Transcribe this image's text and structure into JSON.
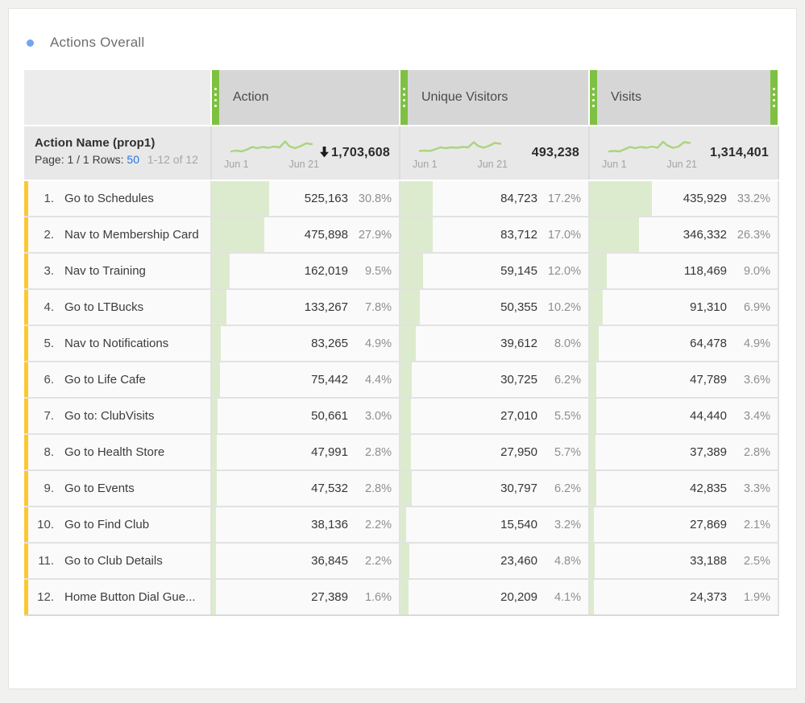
{
  "page": {
    "title": "Actions Overall"
  },
  "colors": {
    "handle_green": "#7ec142",
    "bar_green": "#dcebcd",
    "row_yellow": "#fcc832",
    "link_blue": "#2374e0",
    "spark_green": "#a9d57e",
    "header_gray": "#d6d6d6",
    "header_light": "#ececec",
    "summary_gray": "#e9e8e8",
    "row_bg": "#fafafa"
  },
  "table": {
    "dimension_header": {
      "name": "Action Name (prop1)",
      "page_label": "Page: 1 / 1",
      "rows_label": "Rows:",
      "rows_value": "50",
      "range_label": "1-12 of 12"
    },
    "columns": [
      {
        "id": "action",
        "label": "Action",
        "total": "1,703,608",
        "sorted_desc": true,
        "spark_start_label": "Jun 1",
        "spark_end_label": "Jun 21"
      },
      {
        "id": "unique_visitors",
        "label": "Unique Visitors",
        "total": "493,238",
        "sorted_desc": false,
        "spark_start_label": "Jun 1",
        "spark_end_label": "Jun 21"
      },
      {
        "id": "visits",
        "label": "Visits",
        "total": "1,314,401",
        "sorted_desc": false,
        "spark_start_label": "Jun 1",
        "spark_end_label": "Jun 21"
      }
    ],
    "rows": [
      {
        "num": "1.",
        "name": "Go to Schedules",
        "metrics": {
          "action": {
            "value": "525,163",
            "pct": "30.8%",
            "pct_num": 30.8
          },
          "unique_visitors": {
            "value": "84,723",
            "pct": "17.2%",
            "pct_num": 17.2
          },
          "visits": {
            "value": "435,929",
            "pct": "33.2%",
            "pct_num": 33.2
          }
        }
      },
      {
        "num": "2.",
        "name": "Nav to Membership Card",
        "metrics": {
          "action": {
            "value": "475,898",
            "pct": "27.9%",
            "pct_num": 27.9
          },
          "unique_visitors": {
            "value": "83,712",
            "pct": "17.0%",
            "pct_num": 17.0
          },
          "visits": {
            "value": "346,332",
            "pct": "26.3%",
            "pct_num": 26.3
          }
        }
      },
      {
        "num": "3.",
        "name": "Nav to Training",
        "metrics": {
          "action": {
            "value": "162,019",
            "pct": "9.5%",
            "pct_num": 9.5
          },
          "unique_visitors": {
            "value": "59,145",
            "pct": "12.0%",
            "pct_num": 12.0
          },
          "visits": {
            "value": "118,469",
            "pct": "9.0%",
            "pct_num": 9.0
          }
        }
      },
      {
        "num": "4.",
        "name": "Go to LTBucks",
        "metrics": {
          "action": {
            "value": "133,267",
            "pct": "7.8%",
            "pct_num": 7.8
          },
          "unique_visitors": {
            "value": "50,355",
            "pct": "10.2%",
            "pct_num": 10.2
          },
          "visits": {
            "value": "91,310",
            "pct": "6.9%",
            "pct_num": 6.9
          }
        }
      },
      {
        "num": "5.",
        "name": "Nav to Notifications",
        "metrics": {
          "action": {
            "value": "83,265",
            "pct": "4.9%",
            "pct_num": 4.9
          },
          "unique_visitors": {
            "value": "39,612",
            "pct": "8.0%",
            "pct_num": 8.0
          },
          "visits": {
            "value": "64,478",
            "pct": "4.9%",
            "pct_num": 4.9
          }
        }
      },
      {
        "num": "6.",
        "name": "Go to Life Cafe",
        "metrics": {
          "action": {
            "value": "75,442",
            "pct": "4.4%",
            "pct_num": 4.4
          },
          "unique_visitors": {
            "value": "30,725",
            "pct": "6.2%",
            "pct_num": 6.2
          },
          "visits": {
            "value": "47,789",
            "pct": "3.6%",
            "pct_num": 3.6
          }
        }
      },
      {
        "num": "7.",
        "name": "Go to: ClubVisits",
        "metrics": {
          "action": {
            "value": "50,661",
            "pct": "3.0%",
            "pct_num": 3.0
          },
          "unique_visitors": {
            "value": "27,010",
            "pct": "5.5%",
            "pct_num": 5.5
          },
          "visits": {
            "value": "44,440",
            "pct": "3.4%",
            "pct_num": 3.4
          }
        }
      },
      {
        "num": "8.",
        "name": "Go to Health Store",
        "metrics": {
          "action": {
            "value": "47,991",
            "pct": "2.8%",
            "pct_num": 2.8
          },
          "unique_visitors": {
            "value": "27,950",
            "pct": "5.7%",
            "pct_num": 5.7
          },
          "visits": {
            "value": "37,389",
            "pct": "2.8%",
            "pct_num": 2.8
          }
        }
      },
      {
        "num": "9.",
        "name": "Go to Events",
        "metrics": {
          "action": {
            "value": "47,532",
            "pct": "2.8%",
            "pct_num": 2.8
          },
          "unique_visitors": {
            "value": "30,797",
            "pct": "6.2%",
            "pct_num": 6.2
          },
          "visits": {
            "value": "42,835",
            "pct": "3.3%",
            "pct_num": 3.3
          }
        }
      },
      {
        "num": "10.",
        "name": "Go to Find Club",
        "metrics": {
          "action": {
            "value": "38,136",
            "pct": "2.2%",
            "pct_num": 2.2
          },
          "unique_visitors": {
            "value": "15,540",
            "pct": "3.2%",
            "pct_num": 3.2
          },
          "visits": {
            "value": "27,869",
            "pct": "2.1%",
            "pct_num": 2.1
          }
        }
      },
      {
        "num": "11.",
        "name": "Go to Club Details",
        "metrics": {
          "action": {
            "value": "36,845",
            "pct": "2.2%",
            "pct_num": 2.2
          },
          "unique_visitors": {
            "value": "23,460",
            "pct": "4.8%",
            "pct_num": 4.8
          },
          "visits": {
            "value": "33,188",
            "pct": "2.5%",
            "pct_num": 2.5
          }
        }
      },
      {
        "num": "12.",
        "name": "Home Button Dial Gue...",
        "metrics": {
          "action": {
            "value": "27,389",
            "pct": "1.6%",
            "pct_num": 1.6
          },
          "unique_visitors": {
            "value": "20,209",
            "pct": "4.1%",
            "pct_num": 4.1
          },
          "visits": {
            "value": "24,373",
            "pct": "1.9%",
            "pct_num": 1.9
          }
        }
      }
    ]
  }
}
